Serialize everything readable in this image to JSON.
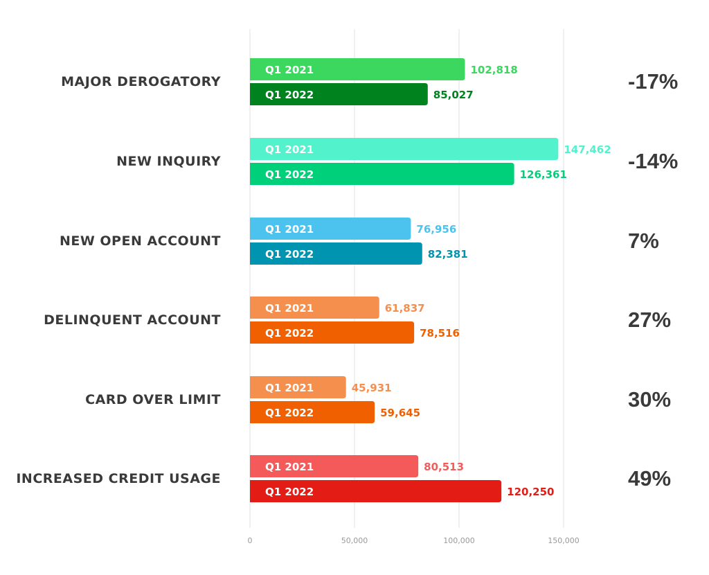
{
  "chart_data": {
    "type": "bar",
    "orientation": "horizontal",
    "categories": [
      "MAJOR DEROGATORY",
      "NEW INQUIRY",
      "NEW OPEN ACCOUNT",
      "DELINQUENT ACCOUNT",
      "CARD OVER LIMIT",
      "INCREASED CREDIT USAGE"
    ],
    "series": [
      {
        "name": "Q1 2021",
        "values": [
          102818,
          147462,
          76956,
          61837,
          45931,
          80513
        ],
        "colors": [
          "#3bd75f",
          "#52f2cc",
          "#4cc3ef",
          "#f58f4e",
          "#f58f4e",
          "#f45a5a"
        ]
      },
      {
        "name": "Q1 2022",
        "values": [
          85027,
          126361,
          82381,
          78516,
          59645,
          120250
        ],
        "colors": [
          "#00821f",
          "#00d07a",
          "#0094b0",
          "#f06000",
          "#f06000",
          "#e31c16"
        ]
      }
    ],
    "value_labels": [
      [
        "102,818",
        "147,462",
        "76,956",
        "61,837",
        "45,931",
        "80,513"
      ],
      [
        "85,027",
        "126,361",
        "82,381",
        "78,516",
        "59,645",
        "120,250"
      ]
    ],
    "change_labels": [
      "-17%",
      "-14%",
      "7%",
      "27%",
      "30%",
      "49%"
    ],
    "xlim": [
      0,
      150000
    ],
    "xticks": [
      0,
      50000,
      100000,
      150000
    ],
    "xtick_labels": [
      "0",
      "50,000",
      "100,000",
      "150,000"
    ],
    "grid": true,
    "title": "",
    "xlabel": "",
    "ylabel": ""
  }
}
